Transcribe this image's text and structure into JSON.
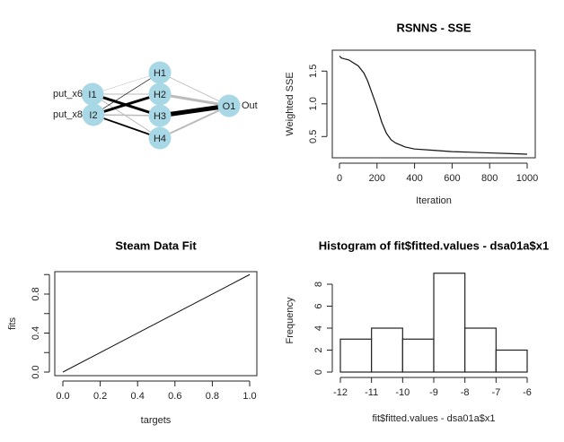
{
  "chart_data": [
    {
      "type": "diagram",
      "title": "",
      "nodes": [
        {
          "id": "I1",
          "label": "I1",
          "layer": "input",
          "input_label": "put_x6"
        },
        {
          "id": "I2",
          "label": "I2",
          "layer": "input",
          "input_label": "put_x8"
        },
        {
          "id": "H1",
          "label": "H1",
          "layer": "hidden"
        },
        {
          "id": "H2",
          "label": "H2",
          "layer": "hidden"
        },
        {
          "id": "H3",
          "label": "H3",
          "layer": "hidden"
        },
        {
          "id": "H4",
          "label": "H4",
          "layer": "hidden"
        },
        {
          "id": "O1",
          "label": "O1",
          "layer": "output",
          "output_label": "Out"
        }
      ],
      "edges": [
        {
          "from": "I1",
          "to": "H1",
          "weight": 0.5,
          "sign": "negative"
        },
        {
          "from": "I1",
          "to": "H2",
          "weight": 1,
          "sign": "negative"
        },
        {
          "from": "I1",
          "to": "H3",
          "weight": 3,
          "sign": "positive"
        },
        {
          "from": "I1",
          "to": "H4",
          "weight": 1,
          "sign": "negative"
        },
        {
          "from": "I2",
          "to": "H1",
          "weight": 0.7,
          "sign": "positive"
        },
        {
          "from": "I2",
          "to": "H2",
          "weight": 3,
          "sign": "positive"
        },
        {
          "from": "I2",
          "to": "H3",
          "weight": 1.5,
          "sign": "negative"
        },
        {
          "from": "I2",
          "to": "H4",
          "weight": 1.8,
          "sign": "positive"
        },
        {
          "from": "H1",
          "to": "O1",
          "weight": 0.8,
          "sign": "negative"
        },
        {
          "from": "H2",
          "to": "O1",
          "weight": 3,
          "sign": "negative"
        },
        {
          "from": "H3",
          "to": "O1",
          "weight": 5,
          "sign": "positive"
        },
        {
          "from": "H4",
          "to": "O1",
          "weight": 2,
          "sign": "negative"
        }
      ],
      "colors": {
        "node": "#a8d8e6",
        "positive": "#000000",
        "negative": "#bbbbbb"
      }
    },
    {
      "type": "line",
      "title": "RSNNS - SSE",
      "xlabel": "Iteration",
      "ylabel": "Weighted SSE",
      "xlim": [
        -40,
        1040
      ],
      "ylim": [
        0.175,
        1.82
      ],
      "xticks": [
        "0",
        "200",
        "400",
        "600",
        "800",
        "1000"
      ],
      "xtick_values": [
        0,
        200,
        400,
        600,
        800,
        1000
      ],
      "yticks": [
        "0.5",
        "1.0",
        "1.5"
      ],
      "ytick_values": [
        0.5,
        1.0,
        1.5
      ],
      "x": [
        0,
        10,
        50,
        100,
        130,
        150,
        175,
        200,
        225,
        250,
        275,
        300,
        350,
        400,
        500,
        600,
        700,
        800,
        900,
        1000
      ],
      "y": [
        1.73,
        1.7,
        1.67,
        1.58,
        1.47,
        1.35,
        1.15,
        0.95,
        0.72,
        0.55,
        0.45,
        0.4,
        0.34,
        0.31,
        0.29,
        0.27,
        0.26,
        0.25,
        0.24,
        0.23
      ]
    },
    {
      "type": "line",
      "title": "Steam Data Fit",
      "xlabel": "targets",
      "ylabel": "fits",
      "xlim": [
        -0.04,
        1.04
      ],
      "ylim": [
        -0.04,
        1.04
      ],
      "xticks": [
        "0.0",
        "0.2",
        "0.4",
        "0.6",
        "0.8",
        "1.0"
      ],
      "xtick_values": [
        0,
        0.2,
        0.4,
        0.6,
        0.8,
        1.0
      ],
      "yticks": [
        "0.0",
        "0.4",
        "0.8"
      ],
      "ytick_values": [
        0,
        0.4,
        0.8
      ],
      "yminor_ticks": [
        0.2,
        0.6,
        1.0
      ],
      "x": [
        0,
        1
      ],
      "y": [
        0,
        1
      ]
    },
    {
      "type": "bar",
      "title": "Histogram of fit$fitted.values - dsa01a$x1",
      "xlabel": "fit$fitted.values - dsa01a$x1",
      "ylabel": "Frequency",
      "bins": [
        [
          -12,
          -11
        ],
        [
          -11,
          -10
        ],
        [
          -10,
          -9
        ],
        [
          -9,
          -8
        ],
        [
          -8,
          -7
        ],
        [
          -7,
          -6
        ]
      ],
      "values": [
        3,
        4,
        3,
        9,
        4,
        2
      ],
      "xticks": [
        "-12",
        "-11",
        "-10",
        "-9",
        "-8",
        "-7",
        "-6"
      ],
      "xtick_values": [
        -12,
        -11,
        -10,
        -9,
        -8,
        -7,
        -6
      ],
      "yticks": [
        "0",
        "2",
        "4",
        "6",
        "8"
      ],
      "ytick_values": [
        0,
        2,
        4,
        6,
        8
      ],
      "ylim": [
        0,
        9
      ]
    }
  ]
}
